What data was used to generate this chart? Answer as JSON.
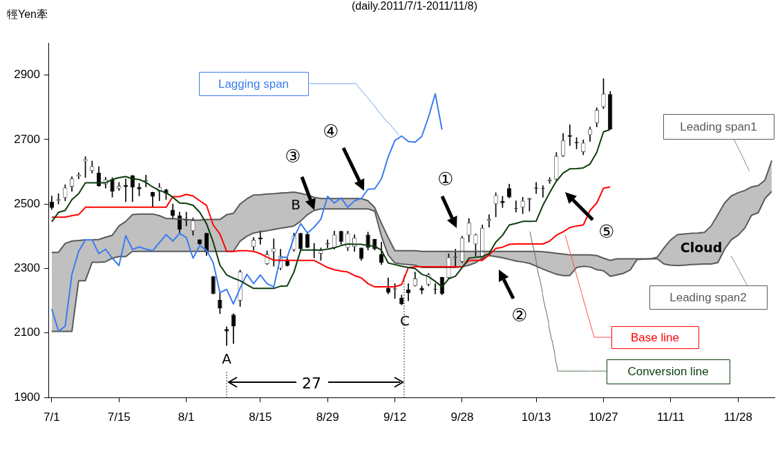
{
  "chart_data": {
    "type": "candlestick",
    "title": "(daily.2011/7/1-2011/11/8)",
    "ylabel": "牼Yen牽",
    "categories": [
      "7/1",
      null,
      null,
      null,
      null,
      null,
      null,
      null,
      null,
      null,
      "7/15",
      null,
      null,
      null,
      null,
      null,
      null,
      null,
      null,
      null,
      "8/1",
      null,
      null,
      null,
      null,
      null,
      null,
      null,
      null,
      null,
      null,
      "8/15",
      null,
      null,
      null,
      null,
      null,
      null,
      null,
      null,
      null,
      "8/29",
      null,
      null,
      null,
      null,
      null,
      null,
      null,
      null,
      null,
      "9/12",
      null,
      null,
      null,
      null,
      null,
      null,
      null,
      null,
      null,
      "9/28",
      null,
      null,
      null,
      null,
      null,
      null,
      null,
      null,
      null,
      null,
      "10/13",
      null,
      null,
      null,
      null,
      null,
      null,
      null,
      null,
      null,
      "10/27",
      null,
      null,
      null,
      null,
      null,
      null,
      null,
      null,
      null,
      "11/11",
      null,
      null,
      null,
      null,
      null,
      null,
      null,
      null,
      null,
      "11/28",
      null,
      null,
      null,
      null,
      null
    ],
    "ohlc": [
      [
        2507,
        2525,
        2483,
        2488
      ],
      [
        2510,
        2532,
        2500,
        2515
      ],
      [
        2519,
        2560,
        2510,
        2551
      ],
      [
        2554,
        2585,
        2539,
        2579
      ],
      [
        2585,
        2597,
        2578,
        2591
      ],
      [
        2632,
        2647,
        2582,
        2639
      ],
      [
        2603,
        2633,
        2596,
        2617
      ],
      [
        2597,
        2616,
        2554,
        2556
      ],
      [
        2561,
        2583,
        2549,
        2576
      ],
      [
        2576,
        2582,
        2521,
        2539
      ],
      [
        2548,
        2567,
        2542,
        2556
      ],
      [
        2559,
        2578,
        2507,
        2553
      ],
      [
        2589,
        2589,
        2507,
        2552
      ],
      [
        2553,
        2564,
        2525,
        2546
      ],
      [
        2570,
        2590,
        2553,
        2574
      ],
      [
        2537,
        2537,
        2492,
        2523
      ],
      [
        2539,
        2564,
        2510,
        2553
      ],
      [
        2545,
        2546,
        2514,
        2532
      ],
      [
        2482,
        2500,
        2453,
        2464
      ],
      [
        2464,
        2475,
        2410,
        2421
      ],
      [
        2453,
        2475,
        2432,
        2449
      ],
      [
        2416,
        2457,
        2403,
        2449
      ],
      [
        2390,
        2390,
        2375,
        2375
      ],
      [
        2410,
        2410,
        2340,
        2350
      ],
      [
        2276,
        2276,
        2221,
        2221
      ],
      [
        2203,
        2225,
        2160,
        2176
      ],
      [
        2112,
        2119,
        2061,
        2105
      ],
      [
        2157,
        2160,
        2067,
        2121
      ],
      [
        2200,
        2295,
        2182,
        2290
      ],
      null,
      [
        2367,
        2396,
        2357,
        2389
      ],
      [
        2396,
        2417,
        2375,
        2391
      ],
      [
        2314,
        2355,
        2312,
        2344
      ],
      [
        2351,
        2392,
        2307,
        2362
      ],
      [
        2300,
        2360,
        2296,
        2339
      ],
      [
        2328,
        2332,
        2307,
        2308
      ],
      [
        2357,
        2410,
        2353,
        2403
      ],
      [
        2410,
        2410,
        2355,
        2360
      ],
      [
        2407,
        2410,
        2364,
        2364
      ],
      [
        2360,
        2378,
        2333,
        2358
      ],
      [
        2346,
        2364,
        2325,
        2356
      ],
      [
        2375,
        2389,
        2364,
        2379
      ],
      [
        2364,
        2416,
        2360,
        2405
      ],
      [
        2416,
        2416,
        2375,
        2383
      ],
      [
        2364,
        2416,
        2355,
        2409
      ],
      [
        2367,
        2405,
        2353,
        2396
      ],
      [
        2364,
        2364,
        2325,
        2330
      ],
      [
        2405,
        2413,
        2357,
        2364
      ],
      [
        2391,
        2391,
        2357,
        2360
      ],
      [
        2344,
        2382,
        2312,
        2317
      ],
      [
        2239,
        2271,
        2221,
        2225
      ],
      [
        2235,
        2253,
        2207,
        2238
      ],
      [
        2209,
        2218,
        2187,
        2189
      ],
      [
        2235,
        2253,
        2200,
        2223
      ],
      [
        2246,
        2289,
        2245,
        2269
      ],
      [
        2240,
        2246,
        2221,
        2232
      ],
      [
        2250,
        2285,
        2246,
        2282
      ],
      [
        2236,
        2253,
        2221,
        2234
      ],
      [
        2273,
        2273,
        2218,
        2221
      ],
      [
        2271,
        2346,
        2268,
        2335
      ],
      [
        2333,
        2360,
        2303,
        2337
      ],
      [
        2321,
        2400,
        2318,
        2396
      ],
      [
        2403,
        2455,
        2382,
        2442
      ],
      [
        2375,
        2407,
        2339,
        2405
      ],
      [
        2332,
        2435,
        2328,
        2426
      ],
      [
        2448,
        2467,
        2428,
        2453
      ],
      [
        2500,
        2535,
        2460,
        2527
      ],
      [
        2509,
        2524,
        2489,
        2503
      ],
      [
        2549,
        2562,
        2519,
        2521
      ],
      [
        2487,
        2510,
        2475,
        2485
      ],
      [
        2489,
        2521,
        2470,
        2510
      ],
      [
        2514,
        2518,
        2478,
        2518
      ],
      [
        2551,
        2567,
        2532,
        2548
      ],
      [
        2549,
        2557,
        2521,
        2547
      ],
      [
        2571,
        2582,
        2564,
        2576
      ],
      [
        2576,
        2660,
        2574,
        2649
      ],
      [
        2649,
        2719,
        2647,
        2697
      ],
      [
        2713,
        2746,
        2681,
        2709
      ],
      [
        2692,
        2706,
        2671,
        2689
      ],
      [
        2661,
        2699,
        2653,
        2690
      ],
      [
        2714,
        2739,
        2694,
        2733
      ],
      [
        2751,
        2799,
        2739,
        2792
      ],
      [
        2801,
        2889,
        2796,
        2842
      ],
      [
        2841,
        2849,
        2732,
        2732
      ],
      null,
      null,
      null,
      null,
      null,
      null,
      null,
      null,
      null,
      null,
      null,
      null,
      null,
      null,
      null,
      null,
      null,
      null,
      null,
      null,
      null,
      null,
      null,
      null
    ],
    "series": [
      {
        "name": "Conversion line",
        "type": "line",
        "color": "#0b3b0b",
        "values": [
          2445,
          2474,
          2480,
          2514,
          2532,
          2566,
          2566,
          2566,
          2566,
          2576,
          2582,
          2585,
          2578,
          2576,
          2567,
          2553,
          2542,
          2535,
          2521,
          2503,
          2502,
          2496,
          2474,
          2439,
          2382,
          2310,
          2280,
          2270,
          2262,
          2250,
          2238,
          2238,
          2238,
          2238,
          2245,
          2246,
          2289,
          2357,
          2357,
          2357,
          2357,
          2360,
          2364,
          2371,
          2376,
          2375,
          2375,
          2371,
          2369,
          2357,
          2317,
          2312,
          2307,
          2303,
          2300,
          2282,
          2275,
          2260,
          2243,
          2268,
          2276,
          2303,
          2332,
          2335,
          2337,
          2346,
          2382,
          2403,
          2435,
          2440,
          2446,
          2446,
          2447,
          2496,
          2535,
          2571,
          2596,
          2609,
          2610,
          2612,
          2624,
          2660,
          2724,
          2731,
          null,
          null,
          null,
          null,
          null,
          null,
          null,
          null,
          null,
          null,
          null,
          null,
          null,
          null,
          null,
          null,
          null,
          null,
          null,
          null,
          null,
          null,
          null,
          null
        ]
      },
      {
        "name": "Base line",
        "type": "line",
        "color": "#ff0000",
        "values": [
          2459,
          2459,
          2459,
          2464,
          2467,
          2490,
          2490,
          2490,
          2490,
          2490,
          2490,
          2490,
          2490,
          2490,
          2490,
          2490,
          2490,
          2490,
          2523,
          2523,
          2530,
          2525,
          2510,
          2496,
          2435,
          2407,
          2353,
          2353,
          2355,
          2355,
          2353,
          2346,
          2335,
          2326,
          2325,
          2325,
          2325,
          2325,
          2325,
          2325,
          2314,
          2303,
          2296,
          2292,
          2289,
          2278,
          2271,
          2253,
          2243,
          2243,
          2243,
          2243,
          2250,
          2303,
          2305,
          2305,
          2305,
          2305,
          2305,
          2305,
          2305,
          2305,
          2325,
          2325,
          2325,
          2342,
          2362,
          2366,
          2375,
          2376,
          2376,
          2376,
          2376,
          2376,
          2385,
          2403,
          2414,
          2427,
          2432,
          2435,
          2480,
          2503,
          2549,
          2553,
          null,
          null,
          null,
          null,
          null,
          null,
          null,
          null,
          null,
          null,
          null,
          null,
          null,
          null,
          null,
          null,
          null,
          null,
          null,
          null,
          null,
          null,
          null,
          null
        ]
      },
      {
        "name": "Lagging span",
        "type": "line",
        "color": "#3b7bf0",
        "values": [
          2175,
          2105,
          2121,
          2282,
          2353,
          2389,
          2389,
          2346,
          2360,
          2332,
          2309,
          2402,
          2359,
          2367,
          2360,
          2355,
          2380,
          2405,
          2385,
          2409,
          2396,
          2332,
          2371,
          2357,
          2318,
          2225,
          2235,
          2190,
          2239,
          2282,
          2253,
          2280,
          2253,
          2243,
          2335,
          2335,
          2396,
          2439,
          2410,
          2428,
          2453,
          2524,
          2503,
          2519,
          2490,
          2510,
          2517,
          2546,
          2547,
          2578,
          2646,
          2697,
          2711,
          2694,
          2692,
          2710,
          2770,
          2842,
          2731,
          null,
          null,
          null,
          null,
          null,
          null,
          null,
          null,
          null,
          null,
          null,
          null,
          null,
          null,
          null,
          null,
          null,
          null,
          null,
          null,
          null,
          null,
          null,
          null,
          null,
          null,
          null,
          null,
          null,
          null,
          null,
          null,
          null,
          null,
          null,
          null,
          null,
          null,
          null,
          null,
          null,
          null,
          null,
          null,
          null,
          null,
          null,
          null,
          null
        ]
      },
      {
        "name": "Leading span1",
        "type": "line",
        "color": "#595959",
        "values": [
          2350,
          2350,
          2378,
          2385,
          2387,
          2389,
          2389,
          2390,
          2397,
          2403,
          2432,
          2446,
          2467,
          2469,
          2469,
          2469,
          2464,
          2455,
          2455,
          2453,
          2452,
          2450,
          2450,
          2452,
          2452,
          2452,
          2467,
          2471,
          2500,
          2516,
          2528,
          2529,
          2531,
          2532,
          2534,
          2535,
          2537,
          2533,
          2528,
          2521,
          2517,
          2517,
          2517,
          2517,
          2517,
          2517,
          2517,
          2510,
          2489,
          2440,
          2396,
          2355,
          2355,
          2355,
          2355,
          2353,
          2353,
          2353,
          2353,
          2353,
          2353,
          2353,
          2353,
          2353,
          2353,
          2353,
          2353,
          2353,
          2353,
          2353,
          2353,
          2353,
          2353,
          2352,
          2350,
          2347,
          2345,
          2342,
          2342,
          2342,
          2342,
          2340,
          2332,
          2325,
          2330,
          2330,
          2330,
          2330,
          2330,
          2330,
          2335,
          2364,
          2389,
          2405,
          2407,
          2409,
          2410,
          2412,
          2432,
          2467,
          2503,
          2525,
          2535,
          2542,
          2553,
          2557,
          2574,
          2635
        ],
        "lower": [
          2105,
          2105,
          2105,
          2105,
          2262,
          2262,
          2319,
          2319,
          2321,
          2332,
          2337,
          2337,
          2353,
          2353,
          2353,
          2353,
          2353,
          2353,
          2353,
          2353,
          2353,
          2353,
          2353,
          2353,
          2353,
          2353,
          2353,
          2353,
          2385,
          2400,
          2410,
          2414,
          2417,
          2421,
          2425,
          2428,
          2432,
          2447,
          2467,
          2480,
          2485,
          2485,
          2485,
          2485,
          2485,
          2485,
          2485,
          2485,
          2478,
          2400,
          2342,
          2317,
          2314,
          2312,
          2310,
          2303,
          2303,
          2303,
          2303,
          2303,
          2303,
          2305,
          2310,
          2318,
          2332,
          2340,
          2337,
          2333,
          2328,
          2323,
          2320,
          2316,
          2307,
          2298,
          2290,
          2282,
          2278,
          2278,
          2303,
          2307,
          2305,
          2296,
          2293,
          2276,
          2280,
          2285,
          2296,
          2328,
          2329,
          2330,
          2330,
          2314,
          2310,
          2309,
          2310,
          2312,
          2313,
          2314,
          2314,
          2318,
          2360,
          2389,
          2403,
          2425,
          2465,
          2473,
          2517,
          2539
        ],
        "upper": [
          2350,
          2350,
          2378,
          2385,
          2387,
          2389,
          2389,
          2390,
          2397,
          2403,
          2432,
          2446,
          2467,
          2469,
          2469,
          2469,
          2464,
          2455,
          2455,
          2453,
          2452,
          2450,
          2450,
          2452,
          2452,
          2452,
          2467,
          2471,
          2500,
          2516,
          2528,
          2529,
          2531,
          2532,
          2534,
          2535,
          2537,
          2533,
          2528,
          2521,
          2517,
          2517,
          2517,
          2517,
          2517,
          2517,
          2517,
          2510,
          2489,
          2440,
          2396,
          2355,
          2355,
          2355,
          2355,
          2353,
          2353,
          2353,
          2353,
          2353,
          2353,
          2353,
          2353,
          2353,
          2353,
          2353,
          2353,
          2353,
          2353,
          2353,
          2353,
          2353,
          2353,
          2352,
          2350,
          2347,
          2345,
          2342,
          2342,
          2342,
          2342,
          2340,
          2332,
          2325,
          2330,
          2330,
          2330,
          2330,
          2330,
          2330,
          2335,
          2364,
          2389,
          2405,
          2407,
          2409,
          2410,
          2412,
          2432,
          2467,
          2503,
          2525,
          2535,
          2542,
          2553,
          2557,
          2574,
          2635
        ]
      },
      {
        "name": "Leading span2",
        "type": "line",
        "color": "#595959",
        "values": [
          2105,
          2105,
          2105,
          2105,
          2262,
          2262,
          2319,
          2319,
          2321,
          2332,
          2337,
          2337,
          2353,
          2353,
          2353,
          2353,
          2353,
          2353,
          2353,
          2353,
          2353,
          2353,
          2353,
          2353,
          2353,
          2353,
          2353,
          2353,
          2385,
          2400,
          2410,
          2414,
          2417,
          2421,
          2425,
          2428,
          2432,
          2447,
          2467,
          2480,
          2485,
          2485,
          2485,
          2485,
          2485,
          2485,
          2485,
          2485,
          2478,
          2400,
          2342,
          2317,
          2314,
          2312,
          2310,
          2303,
          2303,
          2303,
          2303,
          2303,
          2303,
          2305,
          2310,
          2318,
          2332,
          2340,
          2337,
          2333,
          2328,
          2323,
          2320,
          2316,
          2307,
          2298,
          2290,
          2282,
          2278,
          2278,
          2303,
          2307,
          2305,
          2296,
          2293,
          2276,
          2280,
          2285,
          2296,
          2328,
          2329,
          2330,
          2330,
          2314,
          2310,
          2309,
          2310,
          2312,
          2313,
          2314,
          2314,
          2318,
          2360,
          2389,
          2403,
          2425,
          2465,
          2473,
          2517,
          2539
        ]
      }
    ],
    "ylim": [
      1900,
      3000
    ],
    "yticks": [
      1900,
      2100,
      2300,
      2500,
      2700,
      2900
    ],
    "annotations": [
      "A",
      "B",
      "C",
      "27",
      "①",
      "②",
      "③",
      "④",
      "⑤",
      "Cloud"
    ]
  }
}
